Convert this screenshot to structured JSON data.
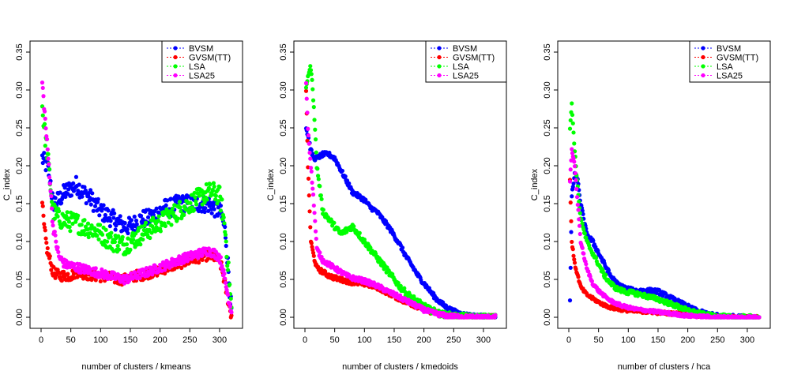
{
  "chart_data": [
    {
      "type": "scatter",
      "title": "",
      "xlabel": "number of clusters / kmeans",
      "ylabel": "C_index",
      "xlim": [
        0,
        320
      ],
      "ylim": [
        0,
        0.35
      ],
      "xticks": [
        "0",
        "50",
        "100",
        "150",
        "200",
        "250",
        "300"
      ],
      "yticks": [
        "0.00",
        "0.05",
        "0.10",
        "0.15",
        "0.20",
        "0.25",
        "0.30",
        "0.35"
      ],
      "legend_position": "top-right",
      "series": [
        {
          "name": "BVSM",
          "color": "#0000ff",
          "x": [
            2,
            5,
            10,
            15,
            20,
            30,
            40,
            50,
            60,
            70,
            80,
            90,
            100,
            110,
            120,
            130,
            140,
            150,
            160,
            170,
            180,
            190,
            200,
            210,
            220,
            230,
            240,
            250,
            260,
            270,
            280,
            290,
            300,
            305,
            310,
            315,
            320
          ],
          "y": [
            0.21,
            0.205,
            0.2,
            0.185,
            0.15,
            0.155,
            0.165,
            0.17,
            0.175,
            0.165,
            0.16,
            0.15,
            0.14,
            0.135,
            0.13,
            0.125,
            0.12,
            0.12,
            0.125,
            0.13,
            0.13,
            0.135,
            0.14,
            0.145,
            0.145,
            0.15,
            0.15,
            0.15,
            0.15,
            0.15,
            0.15,
            0.145,
            0.14,
            0.13,
            0.11,
            0.06,
            0.005
          ],
          "spread": 0.012
        },
        {
          "name": "GVSM(TT)",
          "color": "#ff0000",
          "x": [
            2,
            5,
            10,
            15,
            20,
            30,
            40,
            50,
            60,
            70,
            80,
            90,
            100,
            110,
            120,
            130,
            140,
            150,
            160,
            170,
            180,
            190,
            200,
            210,
            220,
            230,
            240,
            250,
            260,
            270,
            280,
            290,
            300,
            305,
            310,
            315,
            320
          ],
          "y": [
            0.15,
            0.12,
            0.09,
            0.075,
            0.06,
            0.055,
            0.055,
            0.055,
            0.06,
            0.058,
            0.056,
            0.055,
            0.054,
            0.053,
            0.052,
            0.05,
            0.05,
            0.052,
            0.055,
            0.056,
            0.058,
            0.06,
            0.062,
            0.065,
            0.068,
            0.07,
            0.073,
            0.075,
            0.078,
            0.08,
            0.082,
            0.08,
            0.075,
            0.06,
            0.04,
            0.02,
            0.002
          ],
          "spread": 0.007
        },
        {
          "name": "LSA",
          "color": "#00ff00",
          "x": [
            2,
            5,
            10,
            15,
            20,
            30,
            40,
            50,
            60,
            70,
            80,
            90,
            100,
            110,
            120,
            130,
            140,
            150,
            160,
            170,
            180,
            190,
            200,
            210,
            220,
            230,
            240,
            250,
            260,
            270,
            280,
            290,
            300,
            305,
            310,
            315,
            320
          ],
          "y": [
            0.28,
            0.25,
            0.22,
            0.18,
            0.14,
            0.13,
            0.128,
            0.126,
            0.125,
            0.12,
            0.118,
            0.115,
            0.11,
            0.105,
            0.1,
            0.098,
            0.095,
            0.1,
            0.105,
            0.11,
            0.115,
            0.12,
            0.125,
            0.13,
            0.135,
            0.14,
            0.145,
            0.15,
            0.155,
            0.16,
            0.165,
            0.165,
            0.16,
            0.14,
            0.11,
            0.06,
            0.01
          ],
          "spread": 0.013
        },
        {
          "name": "LSA25",
          "color": "#ff00ff",
          "x": [
            2,
            5,
            10,
            15,
            20,
            30,
            40,
            50,
            60,
            70,
            80,
            90,
            100,
            110,
            120,
            130,
            140,
            150,
            160,
            170,
            180,
            190,
            200,
            210,
            220,
            230,
            240,
            250,
            260,
            270,
            280,
            290,
            300,
            305,
            310,
            315,
            320
          ],
          "y": [
            0.31,
            0.28,
            0.23,
            0.18,
            0.12,
            0.08,
            0.07,
            0.068,
            0.066,
            0.064,
            0.062,
            0.06,
            0.058,
            0.056,
            0.054,
            0.052,
            0.05,
            0.052,
            0.055,
            0.058,
            0.06,
            0.063,
            0.066,
            0.069,
            0.072,
            0.075,
            0.078,
            0.08,
            0.083,
            0.085,
            0.088,
            0.085,
            0.08,
            0.065,
            0.045,
            0.025,
            0.01
          ],
          "spread": 0.006
        }
      ]
    },
    {
      "type": "scatter",
      "title": "",
      "xlabel": "number of clusters / kmedoids",
      "ylabel": "C_index",
      "xlim": [
        0,
        320
      ],
      "ylim": [
        0,
        0.35
      ],
      "xticks": [
        "0",
        "50",
        "100",
        "150",
        "200",
        "250",
        "300"
      ],
      "yticks": [
        "0.00",
        "0.05",
        "0.10",
        "0.15",
        "0.20",
        "0.25",
        "0.30",
        "0.35"
      ],
      "legend_position": "top-right",
      "series": [
        {
          "name": "BVSM",
          "color": "#0000ff",
          "x": [
            2,
            5,
            10,
            15,
            20,
            30,
            40,
            50,
            60,
            70,
            80,
            90,
            100,
            110,
            120,
            130,
            140,
            150,
            160,
            170,
            180,
            190,
            200,
            210,
            220,
            230,
            240,
            250,
            260,
            270,
            280,
            290,
            300,
            310,
            320
          ],
          "y": [
            0.25,
            0.24,
            0.22,
            0.21,
            0.21,
            0.215,
            0.215,
            0.21,
            0.195,
            0.18,
            0.165,
            0.16,
            0.155,
            0.145,
            0.14,
            0.13,
            0.12,
            0.108,
            0.095,
            0.08,
            0.068,
            0.055,
            0.045,
            0.035,
            0.025,
            0.018,
            0.012,
            0.008,
            0.005,
            0.003,
            0.002,
            0.001,
            0.001,
            0.0,
            0.0
          ],
          "spread": 0.003
        },
        {
          "name": "GVSM(TT)",
          "color": "#ff0000",
          "x": [
            2,
            5,
            10,
            15,
            20,
            30,
            40,
            50,
            60,
            70,
            80,
            90,
            100,
            110,
            120,
            130,
            140,
            150,
            160,
            170,
            180,
            190,
            200,
            210,
            220,
            230,
            240,
            250,
            260,
            270,
            280,
            290,
            300,
            310,
            320
          ],
          "y": [
            0.3,
            0.2,
            0.1,
            0.08,
            0.065,
            0.06,
            0.055,
            0.052,
            0.05,
            0.048,
            0.046,
            0.045,
            0.044,
            0.042,
            0.04,
            0.036,
            0.032,
            0.028,
            0.024,
            0.02,
            0.017,
            0.014,
            0.011,
            0.008,
            0.006,
            0.004,
            0.003,
            0.002,
            0.001,
            0.001,
            0.0,
            0.0,
            0.0,
            0.0,
            0.0
          ],
          "spread": 0.003
        },
        {
          "name": "LSA",
          "color": "#00ff00",
          "x": [
            2,
            5,
            10,
            15,
            20,
            30,
            40,
            50,
            60,
            70,
            80,
            90,
            100,
            110,
            120,
            130,
            140,
            150,
            160,
            170,
            180,
            190,
            200,
            210,
            220,
            230,
            240,
            250,
            260,
            270,
            280,
            290,
            300,
            310,
            320
          ],
          "y": [
            0.3,
            0.32,
            0.33,
            0.28,
            0.2,
            0.14,
            0.13,
            0.12,
            0.11,
            0.115,
            0.12,
            0.11,
            0.1,
            0.09,
            0.08,
            0.07,
            0.06,
            0.05,
            0.04,
            0.032,
            0.026,
            0.02,
            0.015,
            0.01,
            0.007,
            0.004,
            0.003,
            0.002,
            0.001,
            0.001,
            0.0,
            0.0,
            0.0,
            0.0,
            0.0
          ],
          "spread": 0.004
        },
        {
          "name": "LSA25",
          "color": "#ff00ff",
          "x": [
            2,
            5,
            10,
            15,
            20,
            30,
            40,
            50,
            60,
            70,
            80,
            90,
            100,
            110,
            120,
            130,
            140,
            150,
            160,
            170,
            180,
            190,
            200,
            210,
            220,
            230,
            240,
            250,
            260,
            270,
            280,
            290,
            300,
            310,
            320
          ],
          "y": [
            0.31,
            0.25,
            0.2,
            0.15,
            0.09,
            0.075,
            0.07,
            0.065,
            0.06,
            0.055,
            0.052,
            0.05,
            0.048,
            0.045,
            0.042,
            0.038,
            0.034,
            0.03,
            0.026,
            0.022,
            0.018,
            0.014,
            0.01,
            0.007,
            0.005,
            0.003,
            0.002,
            0.001,
            0.001,
            0.0,
            0.0,
            0.0,
            0.0,
            0.0,
            0.0
          ],
          "spread": 0.003
        }
      ]
    },
    {
      "type": "scatter",
      "title": "",
      "xlabel": "number of clusters / hca",
      "ylabel": "C_index",
      "xlim": [
        0,
        320
      ],
      "ylim": [
        0,
        0.35
      ],
      "xticks": [
        "0",
        "50",
        "100",
        "150",
        "200",
        "250",
        "300"
      ],
      "yticks": [
        "0.00",
        "0.05",
        "0.10",
        "0.15",
        "0.20",
        "0.25",
        "0.30",
        "0.35"
      ],
      "legend_position": "top-right",
      "series": [
        {
          "name": "BVSM",
          "color": "#0000ff",
          "x": [
            2,
            5,
            10,
            15,
            20,
            30,
            40,
            50,
            60,
            70,
            80,
            90,
            100,
            110,
            120,
            130,
            140,
            150,
            160,
            170,
            180,
            190,
            200,
            210,
            220,
            230,
            240,
            250,
            260,
            270,
            280,
            290,
            300,
            310,
            320
          ],
          "y": [
            0.02,
            0.16,
            0.19,
            0.18,
            0.15,
            0.11,
            0.1,
            0.085,
            0.07,
            0.055,
            0.045,
            0.04,
            0.037,
            0.035,
            0.035,
            0.035,
            0.035,
            0.034,
            0.03,
            0.026,
            0.022,
            0.018,
            0.014,
            0.01,
            0.007,
            0.005,
            0.003,
            0.002,
            0.001,
            0.001,
            0.0,
            0.0,
            0.0,
            0.0,
            0.0
          ],
          "spread": 0.003
        },
        {
          "name": "GVSM(TT)",
          "color": "#ff0000",
          "x": [
            2,
            5,
            10,
            15,
            20,
            30,
            40,
            50,
            60,
            70,
            80,
            90,
            100,
            110,
            120,
            130,
            140,
            150,
            160,
            170,
            180,
            190,
            200,
            210,
            220,
            230,
            240,
            250,
            260,
            270,
            280,
            290,
            300,
            310,
            320
          ],
          "y": [
            0.18,
            0.1,
            0.07,
            0.055,
            0.04,
            0.03,
            0.025,
            0.02,
            0.016,
            0.013,
            0.011,
            0.01,
            0.009,
            0.008,
            0.008,
            0.007,
            0.007,
            0.006,
            0.006,
            0.005,
            0.005,
            0.004,
            0.003,
            0.002,
            0.002,
            0.001,
            0.001,
            0.001,
            0.0,
            0.0,
            0.0,
            0.0,
            0.0,
            0.0,
            0.0
          ],
          "spread": 0.002
        },
        {
          "name": "LSA",
          "color": "#00ff00",
          "x": [
            2,
            5,
            10,
            15,
            20,
            30,
            40,
            50,
            60,
            70,
            80,
            90,
            100,
            110,
            120,
            130,
            140,
            150,
            160,
            170,
            180,
            190,
            200,
            210,
            220,
            230,
            240,
            250,
            260,
            270,
            280,
            290,
            300,
            310,
            320
          ],
          "y": [
            0.25,
            0.28,
            0.22,
            0.17,
            0.13,
            0.1,
            0.085,
            0.07,
            0.055,
            0.045,
            0.038,
            0.035,
            0.033,
            0.032,
            0.03,
            0.028,
            0.026,
            0.024,
            0.021,
            0.018,
            0.015,
            0.012,
            0.009,
            0.007,
            0.005,
            0.003,
            0.002,
            0.001,
            0.001,
            0.0,
            0.0,
            0.0,
            0.0,
            0.0,
            0.0
          ],
          "spread": 0.003
        },
        {
          "name": "LSA25",
          "color": "#ff00ff",
          "x": [
            2,
            5,
            10,
            15,
            20,
            30,
            40,
            50,
            60,
            70,
            80,
            90,
            100,
            110,
            120,
            130,
            140,
            150,
            160,
            170,
            180,
            190,
            200,
            210,
            220,
            230,
            240,
            250,
            260,
            270,
            280,
            290,
            300,
            310,
            320
          ],
          "y": [
            0.18,
            0.22,
            0.2,
            0.15,
            0.1,
            0.065,
            0.045,
            0.035,
            0.028,
            0.022,
            0.018,
            0.015,
            0.013,
            0.011,
            0.01,
            0.009,
            0.008,
            0.007,
            0.006,
            0.005,
            0.004,
            0.003,
            0.002,
            0.002,
            0.001,
            0.001,
            0.0,
            0.0,
            0.0,
            0.0,
            0.0,
            0.0,
            0.0,
            0.0,
            0.0
          ],
          "spread": 0.002
        }
      ]
    }
  ]
}
